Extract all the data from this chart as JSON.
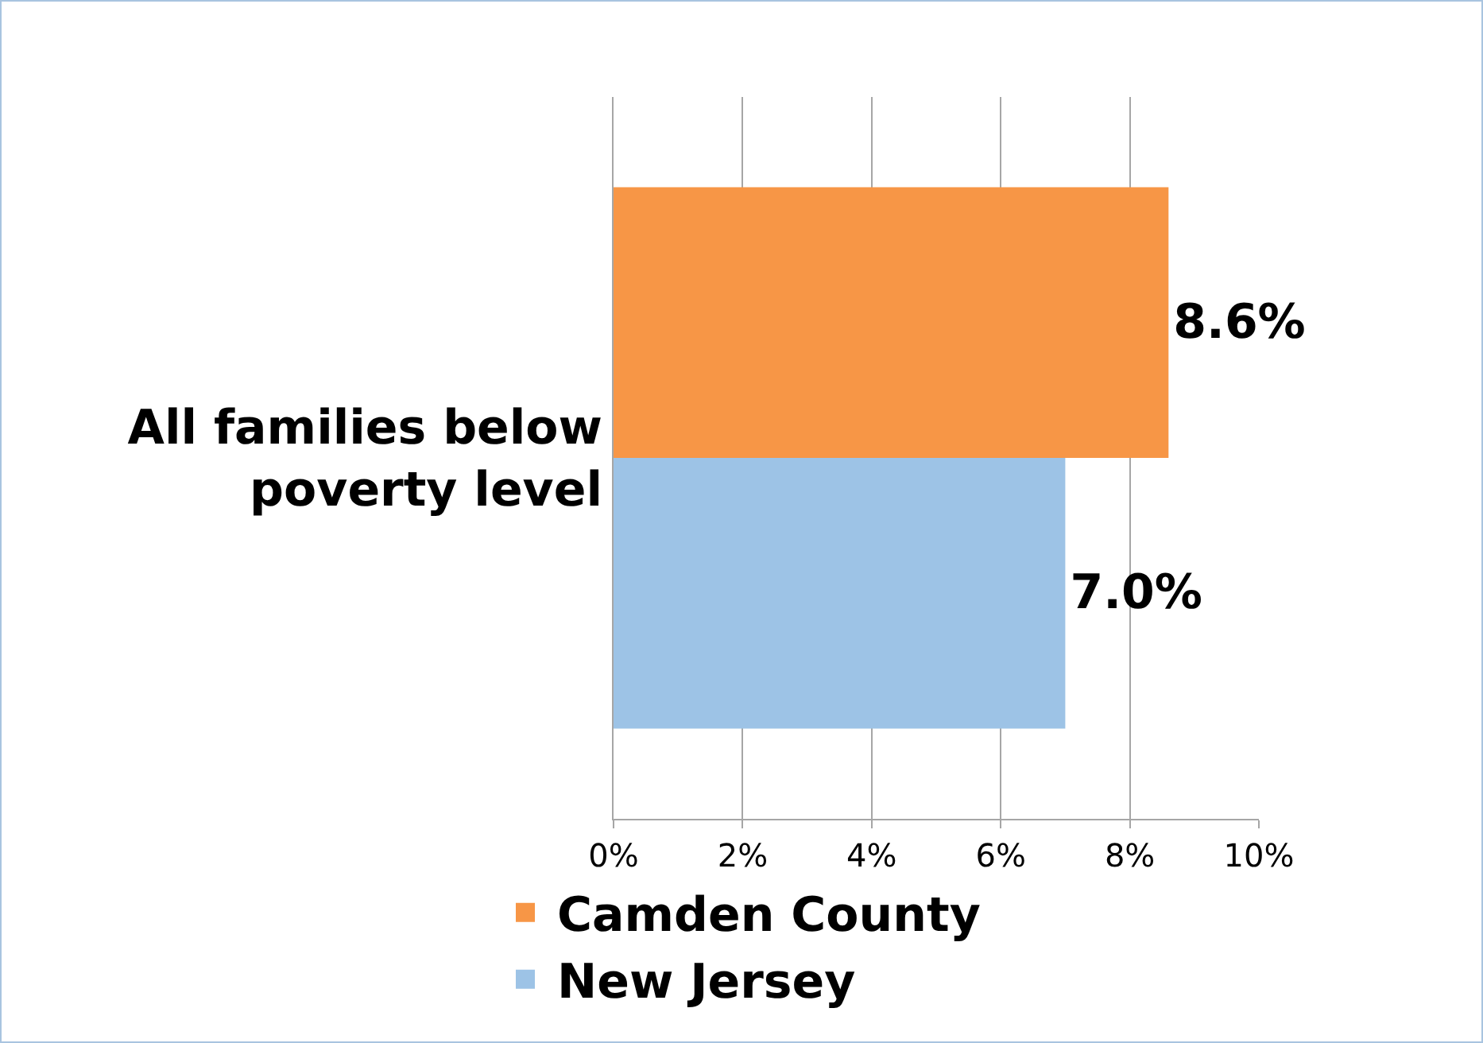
{
  "chart_data": {
    "type": "bar",
    "orientation": "horizontal",
    "categories": [
      "All families below poverty level"
    ],
    "series": [
      {
        "name": "Camden County",
        "color": "#f79646",
        "values": [
          8.6
        ],
        "value_labels": [
          "8.6%"
        ]
      },
      {
        "name": "New Jersey",
        "color": "#9dc3e6",
        "values": [
          7.0
        ],
        "value_labels": [
          "7.0%"
        ]
      }
    ],
    "xlim": [
      0,
      10
    ],
    "xticks": [
      {
        "value": 0,
        "label": "0%"
      },
      {
        "value": 2,
        "label": "2%"
      },
      {
        "value": 4,
        "label": "4%"
      },
      {
        "value": 6,
        "label": "6%"
      },
      {
        "value": 8,
        "label": "8%"
      },
      {
        "value": 10,
        "label": "10%"
      }
    ],
    "grid": "x",
    "legend": "bottom"
  }
}
